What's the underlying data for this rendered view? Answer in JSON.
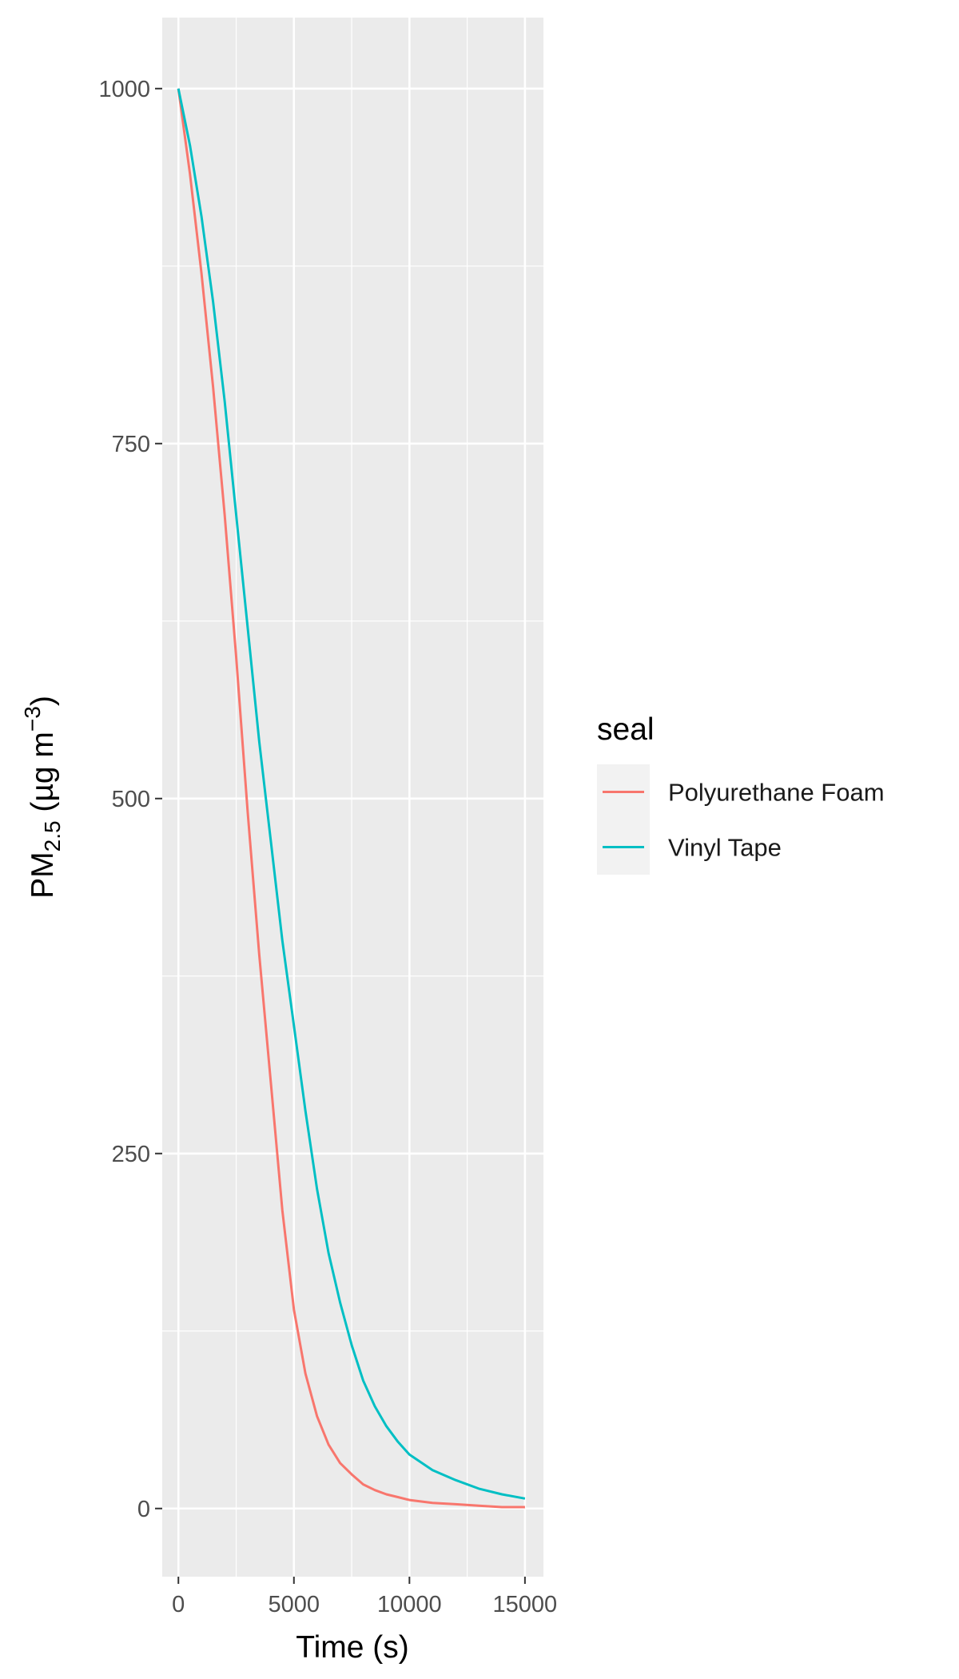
{
  "chart_data": {
    "type": "line",
    "title": "",
    "xlabel": "Time (s)",
    "ylabel": {
      "prefix": "PM",
      "subscript": "2.5",
      "units_open": " (µg m",
      "units_sup": "−3",
      "units_close": ")"
    },
    "xlim": [
      -700,
      15800
    ],
    "ylim": [
      -48,
      1050
    ],
    "x_ticks": [
      0,
      5000,
      10000,
      15000
    ],
    "x_tick_labels": [
      "0",
      "5000",
      "10000",
      "15000"
    ],
    "y_ticks": [
      0,
      250,
      500,
      750,
      1000
    ],
    "y_tick_labels": [
      "0",
      "250",
      "500",
      "750",
      "1000"
    ],
    "grid": true,
    "legend": {
      "title": "seal",
      "position": "right"
    },
    "series": [
      {
        "name": "Polyurethane Foam",
        "color": "#F8766D",
        "x": [
          0,
          500,
          1000,
          1500,
          2000,
          2500,
          3000,
          3500,
          4000,
          4500,
          5000,
          5500,
          6000,
          6500,
          7000,
          7500,
          8000,
          8500,
          9000,
          9500,
          10000,
          11000,
          12000,
          13000,
          14000,
          15000
        ],
        "y": [
          1000,
          940,
          870,
          790,
          700,
          600,
          490,
          390,
          300,
          210,
          140,
          95,
          65,
          45,
          32,
          24,
          17,
          13,
          10,
          8,
          6,
          4,
          3,
          2,
          1,
          1
        ]
      },
      {
        "name": "Vinyl Tape",
        "color": "#00BFC4",
        "x": [
          0,
          500,
          1000,
          1500,
          2000,
          2500,
          3000,
          3500,
          4000,
          4500,
          5000,
          5500,
          6000,
          6500,
          7000,
          7500,
          8000,
          8500,
          9000,
          9500,
          10000,
          11000,
          12000,
          13000,
          14000,
          15000
        ],
        "y": [
          1000,
          960,
          910,
          850,
          780,
          700,
          620,
          540,
          470,
          400,
          340,
          280,
          225,
          180,
          145,
          115,
          90,
          72,
          58,
          47,
          38,
          27,
          20,
          14,
          10,
          7
        ]
      }
    ]
  }
}
